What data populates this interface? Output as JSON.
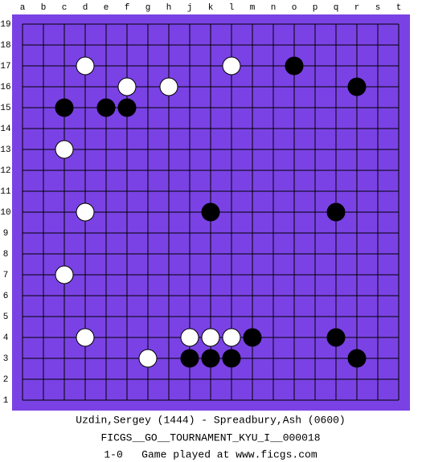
{
  "board": {
    "columns": [
      "a",
      "b",
      "c",
      "d",
      "e",
      "f",
      "g",
      "h",
      "j",
      "k",
      "l",
      "m",
      "n",
      "o",
      "p",
      "q",
      "r",
      "s",
      "t"
    ],
    "rows": [
      19,
      18,
      17,
      16,
      15,
      14,
      13,
      12,
      11,
      10,
      9,
      8,
      7,
      6,
      5,
      4,
      3,
      2,
      1
    ],
    "background": "#7a42e4",
    "stones": [
      {
        "color": "white",
        "col": "d",
        "row": 17
      },
      {
        "color": "white",
        "col": "l",
        "row": 17
      },
      {
        "color": "white",
        "col": "f",
        "row": 16
      },
      {
        "color": "white",
        "col": "h",
        "row": 16
      },
      {
        "color": "white",
        "col": "c",
        "row": 13
      },
      {
        "color": "white",
        "col": "d",
        "row": 10
      },
      {
        "color": "white",
        "col": "c",
        "row": 7
      },
      {
        "color": "white",
        "col": "d",
        "row": 4
      },
      {
        "color": "white",
        "col": "j",
        "row": 4
      },
      {
        "color": "white",
        "col": "k",
        "row": 4
      },
      {
        "color": "white",
        "col": "l",
        "row": 4
      },
      {
        "color": "white",
        "col": "g",
        "row": 3
      },
      {
        "color": "black",
        "col": "o",
        "row": 17
      },
      {
        "color": "black",
        "col": "r",
        "row": 16
      },
      {
        "color": "black",
        "col": "c",
        "row": 15
      },
      {
        "color": "black",
        "col": "e",
        "row": 15
      },
      {
        "color": "black",
        "col": "f",
        "row": 15
      },
      {
        "color": "black",
        "col": "k",
        "row": 10
      },
      {
        "color": "black",
        "col": "q",
        "row": 10
      },
      {
        "color": "black",
        "col": "m",
        "row": 4
      },
      {
        "color": "black",
        "col": "q",
        "row": 4
      },
      {
        "color": "black",
        "col": "j",
        "row": 3
      },
      {
        "color": "black",
        "col": "k",
        "row": 3
      },
      {
        "color": "black",
        "col": "l",
        "row": 3
      },
      {
        "color": "black",
        "col": "r",
        "row": 3
      }
    ]
  },
  "footer": {
    "players": "Uzdin,Sergey (1444) - Spreadbury,Ash (0600)",
    "tournament": "FICGS__GO__TOURNAMENT_KYU_I__000018",
    "result": "1-0   Game played at www.ficgs.com"
  }
}
